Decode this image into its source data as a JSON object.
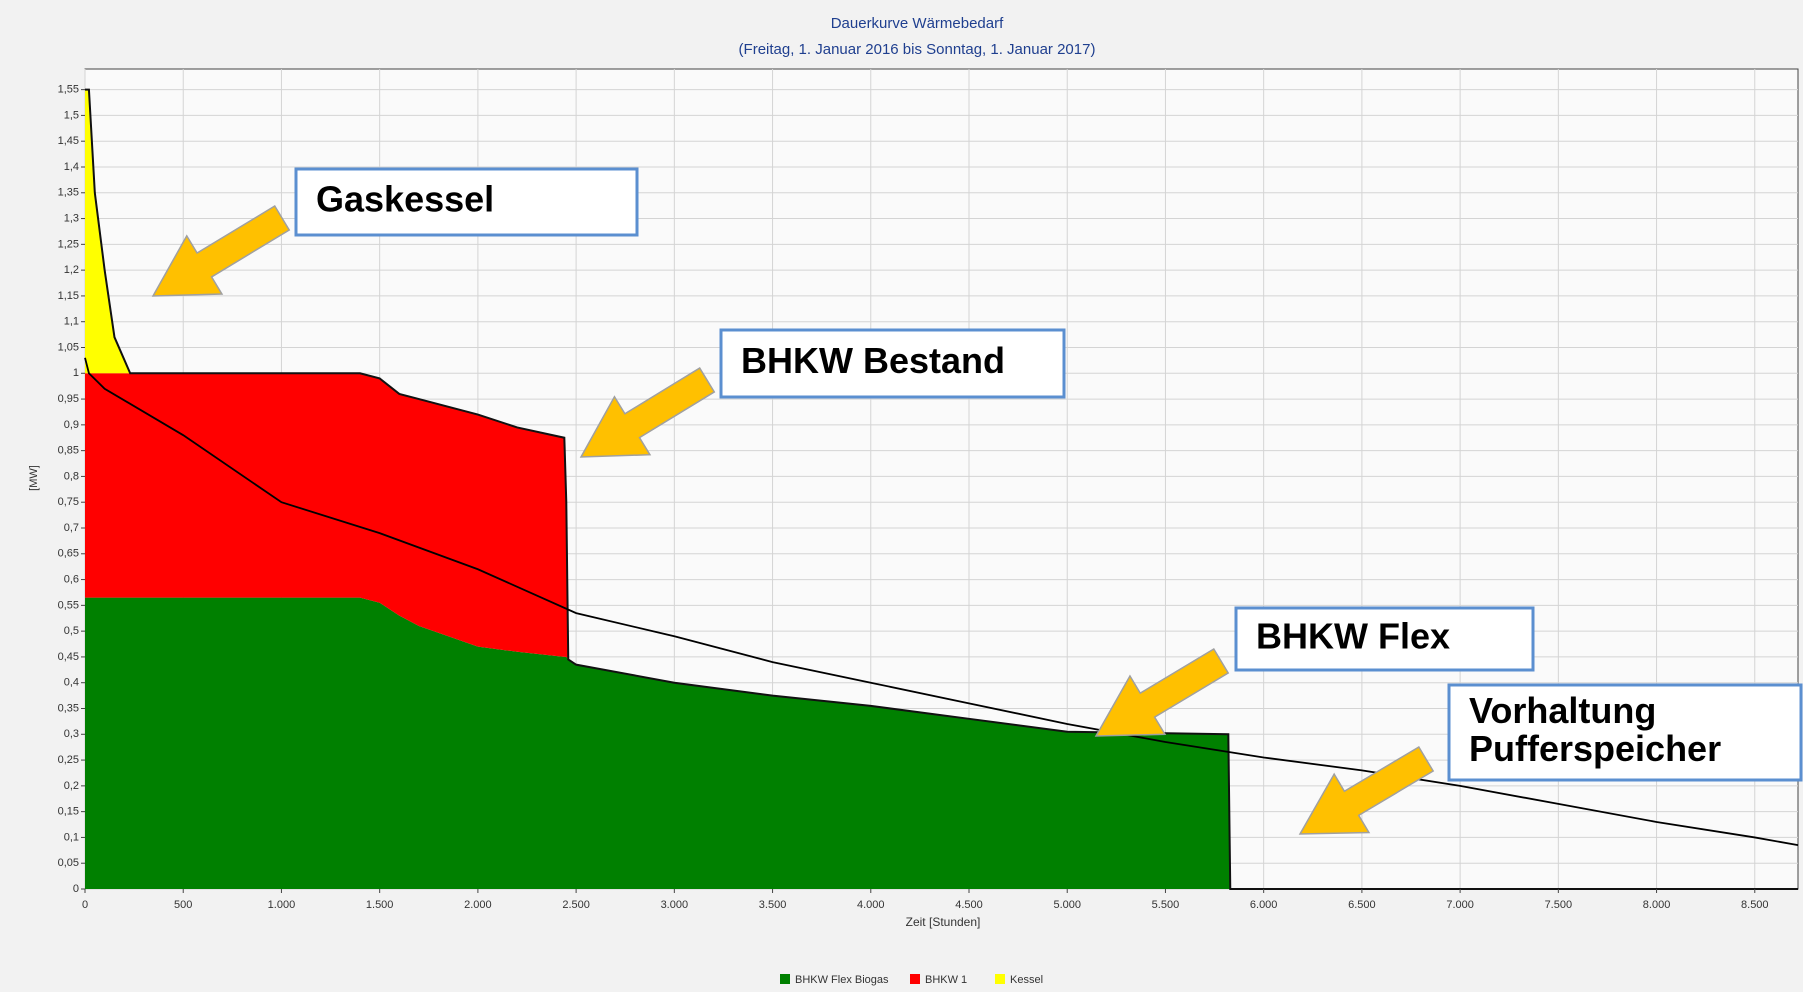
{
  "chart_data": {
    "type": "area",
    "stacked": true,
    "title": "Dauerkurve Wärmebedarf",
    "subtitle": "(Freitag, 1. Januar 2016  bis  Sonntag, 1. Januar 2017)",
    "x_label": "Zeit [Stunden]",
    "y_label": "[MW]",
    "x": [
      0,
      20,
      50,
      100,
      150,
      230,
      1400,
      1500,
      1600,
      1700,
      2000,
      2200,
      2440,
      2450,
      2460,
      2500,
      3000,
      3500,
      4000,
      4500,
      5000,
      5820,
      5830,
      8720
    ],
    "series": [
      {
        "name": "BHKW Flex Biogas",
        "color": "#008000",
        "values": [
          0.565,
          0.565,
          0.565,
          0.565,
          0.565,
          0.565,
          0.565,
          0.555,
          0.53,
          0.51,
          0.47,
          0.46,
          0.45,
          0.45,
          0.445,
          0.435,
          0.4,
          0.375,
          0.355,
          0.33,
          0.305,
          0.3,
          0,
          0
        ]
      },
      {
        "name": "BHKW 1",
        "color": "#ff0000",
        "values": [
          0.435,
          0.435,
          0.435,
          0.435,
          0.435,
          0.435,
          0.435,
          0.435,
          0.43,
          0.44,
          0.45,
          0.435,
          0.425,
          0.3,
          0,
          0,
          0,
          0,
          0,
          0,
          0,
          0,
          0,
          0
        ]
      },
      {
        "name": "Kessel",
        "color": "#ffff00",
        "values": [
          0.55,
          0.55,
          0.35,
          0.2,
          0.07,
          0,
          0,
          0,
          0,
          0,
          0,
          0,
          0,
          0,
          0,
          0,
          0,
          0,
          0,
          0,
          0,
          0,
          0,
          0
        ]
      }
    ],
    "line": {
      "color": "#000000",
      "x": [
        0,
        20,
        100,
        500,
        1000,
        1500,
        2000,
        2500,
        3000,
        3500,
        4000,
        4500,
        5000,
        5500,
        6000,
        6500,
        7000,
        7500,
        8000,
        8500,
        8720
      ],
      "values": [
        1.03,
        1.0,
        0.97,
        0.88,
        0.75,
        0.69,
        0.62,
        0.535,
        0.49,
        0.44,
        0.4,
        0.36,
        0.32,
        0.285,
        0.255,
        0.23,
        0.2,
        0.165,
        0.13,
        0.1,
        0.085
      ]
    },
    "xlim": [
      0,
      8720
    ],
    "ylim": [
      0,
      1.59
    ],
    "xticks": [
      0,
      500,
      {
        "value": 1000,
        "label": "1.000"
      },
      {
        "value": 1500,
        "label": "1.500"
      },
      {
        "value": 2000,
        "label": "2.000"
      },
      {
        "value": 2500,
        "label": "2.500"
      },
      {
        "value": 3000,
        "label": "3.000"
      },
      {
        "value": 3500,
        "label": "3.500"
      },
      {
        "value": 4000,
        "label": "4.000"
      },
      {
        "value": 4500,
        "label": "4.500"
      },
      {
        "value": 5000,
        "label": "5.000"
      },
      {
        "value": 5500,
        "label": "5.500"
      },
      {
        "value": 6000,
        "label": "6.000"
      },
      {
        "value": 6500,
        "label": "6.500"
      },
      {
        "value": 7000,
        "label": "7.000"
      },
      {
        "value": 7500,
        "label": "7.500"
      },
      {
        "value": 8000,
        "label": "8.000"
      },
      {
        "value": 8500,
        "label": "8.500"
      }
    ],
    "yticks": [
      0,
      {
        "value": 0.05,
        "label": "0,05"
      },
      {
        "value": 0.1,
        "label": "0,1"
      },
      {
        "value": 0.15,
        "label": "0,15"
      },
      {
        "value": 0.2,
        "label": "0,2"
      },
      {
        "value": 0.25,
        "label": "0,25"
      },
      {
        "value": 0.3,
        "label": "0,3"
      },
      {
        "value": 0.35,
        "label": "0,35"
      },
      {
        "value": 0.4,
        "label": "0,4"
      },
      {
        "value": 0.45,
        "label": "0,45"
      },
      {
        "value": 0.5,
        "label": "0,5"
      },
      {
        "value": 0.55,
        "label": "0,55"
      },
      {
        "value": 0.6,
        "label": "0,6"
      },
      {
        "value": 0.65,
        "label": "0,65"
      },
      {
        "value": 0.7,
        "label": "0,7"
      },
      {
        "value": 0.75,
        "label": "0,75"
      },
      {
        "value": 0.8,
        "label": "0,8"
      },
      {
        "value": 0.85,
        "label": "0,85"
      },
      {
        "value": 0.9,
        "label": "0,9"
      },
      {
        "value": 0.95,
        "label": "0,95"
      },
      1,
      {
        "value": 1.05,
        "label": "1,05"
      },
      {
        "value": 1.1,
        "label": "1,1"
      },
      {
        "value": 1.15,
        "label": "1,15"
      },
      {
        "value": 1.2,
        "label": "1,2"
      },
      {
        "value": 1.25,
        "label": "1,25"
      },
      {
        "value": 1.3,
        "label": "1,3"
      },
      {
        "value": 1.35,
        "label": "1,35"
      },
      {
        "value": 1.4,
        "label": "1,4"
      },
      {
        "value": 1.45,
        "label": "1,45"
      },
      {
        "value": 1.5,
        "label": "1,5"
      },
      {
        "value": 1.55,
        "label": "1,55"
      }
    ],
    "grid": true,
    "legend": "bottom",
    "annotations": [
      {
        "text": [
          "Gaskessel"
        ]
      },
      {
        "text": [
          "BHKW Bestand"
        ]
      },
      {
        "text": [
          "BHKW Flex"
        ]
      },
      {
        "text": [
          "Vorhaltung",
          "Pufferspeicher"
        ]
      }
    ]
  }
}
